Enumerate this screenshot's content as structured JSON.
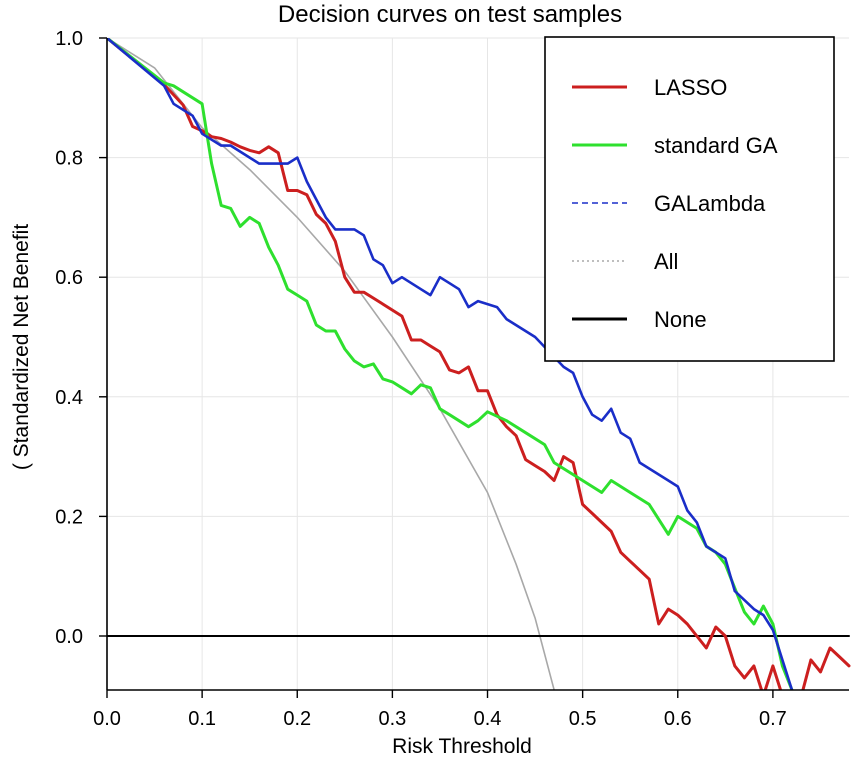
{
  "chart_data": {
    "type": "line",
    "title": "Decision curves on test samples",
    "xlabel": "Risk Threshold",
    "ylabel": "( Standardized Net Benefit",
    "xlim": [
      0,
      0.78
    ],
    "ylim": [
      -0.09,
      1.0
    ],
    "x_ticks": [
      0.0,
      0.1,
      0.2,
      0.3,
      0.4,
      0.5,
      0.6,
      0.7
    ],
    "x_tick_labels": [
      "0.0",
      "0.1",
      "0.2",
      "0.3",
      "0.4",
      "0.5",
      "0.6",
      "0.7"
    ],
    "y_ticks": [
      0.0,
      0.2,
      0.4,
      0.6,
      0.8,
      1.0
    ],
    "y_tick_labels": [
      "0.0",
      "0.2",
      "0.4",
      "0.6",
      "0.8",
      "1.0"
    ],
    "grid": true,
    "legend_position": "top-right",
    "series": [
      {
        "name": "LASSO",
        "color": "#cc1f1f",
        "dash": "solid",
        "points": [
          [
            0,
            1
          ],
          [
            0.06,
            0.922
          ],
          [
            0.08,
            0.888
          ],
          [
            0.09,
            0.852
          ],
          [
            0.1,
            0.845
          ],
          [
            0.11,
            0.835
          ],
          [
            0.12,
            0.832
          ],
          [
            0.13,
            0.826
          ],
          [
            0.14,
            0.818
          ],
          [
            0.15,
            0.812
          ],
          [
            0.16,
            0.808
          ],
          [
            0.17,
            0.818
          ],
          [
            0.18,
            0.808
          ],
          [
            0.19,
            0.745
          ],
          [
            0.2,
            0.745
          ],
          [
            0.21,
            0.738
          ],
          [
            0.22,
            0.705
          ],
          [
            0.23,
            0.69
          ],
          [
            0.24,
            0.66
          ],
          [
            0.25,
            0.6
          ],
          [
            0.26,
            0.575
          ],
          [
            0.27,
            0.575
          ],
          [
            0.28,
            0.565
          ],
          [
            0.29,
            0.555
          ],
          [
            0.3,
            0.545
          ],
          [
            0.31,
            0.535
          ],
          [
            0.32,
            0.495
          ],
          [
            0.33,
            0.495
          ],
          [
            0.34,
            0.485
          ],
          [
            0.35,
            0.475
          ],
          [
            0.36,
            0.445
          ],
          [
            0.37,
            0.44
          ],
          [
            0.38,
            0.45
          ],
          [
            0.39,
            0.41
          ],
          [
            0.4,
            0.41
          ],
          [
            0.41,
            0.37
          ],
          [
            0.42,
            0.35
          ],
          [
            0.43,
            0.335
          ],
          [
            0.44,
            0.295
          ],
          [
            0.45,
            0.285
          ],
          [
            0.46,
            0.275
          ],
          [
            0.47,
            0.26
          ],
          [
            0.48,
            0.3
          ],
          [
            0.49,
            0.29
          ],
          [
            0.5,
            0.22
          ],
          [
            0.51,
            0.205
          ],
          [
            0.52,
            0.19
          ],
          [
            0.53,
            0.175
          ],
          [
            0.54,
            0.14
          ],
          [
            0.55,
            0.125
          ],
          [
            0.56,
            0.11
          ],
          [
            0.57,
            0.095
          ],
          [
            0.58,
            0.02
          ],
          [
            0.59,
            0.045
          ],
          [
            0.6,
            0.035
          ],
          [
            0.61,
            0.02
          ],
          [
            0.62,
            0.0
          ],
          [
            0.63,
            -0.02
          ],
          [
            0.64,
            0.015
          ],
          [
            0.65,
            0.0
          ],
          [
            0.66,
            -0.05
          ],
          [
            0.67,
            -0.07
          ],
          [
            0.68,
            -0.05
          ],
          [
            0.69,
            -0.1
          ],
          [
            0.7,
            -0.05
          ],
          [
            0.71,
            -0.1
          ],
          [
            0.72,
            -0.1
          ],
          [
            0.73,
            -0.1
          ],
          [
            0.74,
            -0.04
          ],
          [
            0.75,
            -0.06
          ],
          [
            0.76,
            -0.02
          ],
          [
            0.77,
            -0.035
          ],
          [
            0.78,
            -0.05
          ]
        ]
      },
      {
        "name": "standard GA",
        "color": "#2ee02e",
        "dash": "solid",
        "points": [
          [
            0,
            1
          ],
          [
            0.06,
            0.925
          ],
          [
            0.07,
            0.92
          ],
          [
            0.08,
            0.91
          ],
          [
            0.09,
            0.9
          ],
          [
            0.1,
            0.89
          ],
          [
            0.11,
            0.79
          ],
          [
            0.12,
            0.72
          ],
          [
            0.13,
            0.715
          ],
          [
            0.14,
            0.685
          ],
          [
            0.15,
            0.7
          ],
          [
            0.16,
            0.69
          ],
          [
            0.17,
            0.65
          ],
          [
            0.18,
            0.62
          ],
          [
            0.19,
            0.58
          ],
          [
            0.2,
            0.57
          ],
          [
            0.21,
            0.56
          ],
          [
            0.22,
            0.52
          ],
          [
            0.23,
            0.51
          ],
          [
            0.24,
            0.51
          ],
          [
            0.25,
            0.48
          ],
          [
            0.26,
            0.46
          ],
          [
            0.27,
            0.45
          ],
          [
            0.28,
            0.455
          ],
          [
            0.29,
            0.43
          ],
          [
            0.3,
            0.425
          ],
          [
            0.31,
            0.415
          ],
          [
            0.32,
            0.405
          ],
          [
            0.33,
            0.42
          ],
          [
            0.34,
            0.415
          ],
          [
            0.35,
            0.38
          ],
          [
            0.36,
            0.37
          ],
          [
            0.37,
            0.36
          ],
          [
            0.38,
            0.35
          ],
          [
            0.39,
            0.36
          ],
          [
            0.4,
            0.375
          ],
          [
            0.42,
            0.36
          ],
          [
            0.44,
            0.34
          ],
          [
            0.46,
            0.32
          ],
          [
            0.47,
            0.29
          ],
          [
            0.48,
            0.28
          ],
          [
            0.5,
            0.26
          ],
          [
            0.52,
            0.24
          ],
          [
            0.53,
            0.26
          ],
          [
            0.55,
            0.24
          ],
          [
            0.57,
            0.22
          ],
          [
            0.59,
            0.17
          ],
          [
            0.6,
            0.2
          ],
          [
            0.61,
            0.19
          ],
          [
            0.62,
            0.18
          ],
          [
            0.63,
            0.15
          ],
          [
            0.64,
            0.14
          ],
          [
            0.65,
            0.12
          ],
          [
            0.66,
            0.08
          ],
          [
            0.67,
            0.04
          ],
          [
            0.68,
            0.02
          ],
          [
            0.69,
            0.05
          ],
          [
            0.7,
            0.02
          ],
          [
            0.71,
            -0.05
          ],
          [
            0.72,
            -0.09
          ]
        ]
      },
      {
        "name": "GALambda",
        "color": "#1a2ec8",
        "dash": "dashed",
        "points": [
          [
            0,
            1
          ],
          [
            0.06,
            0.92
          ],
          [
            0.07,
            0.89
          ],
          [
            0.08,
            0.88
          ],
          [
            0.09,
            0.87
          ],
          [
            0.1,
            0.84
          ],
          [
            0.11,
            0.83
          ],
          [
            0.12,
            0.82
          ],
          [
            0.13,
            0.82
          ],
          [
            0.14,
            0.81
          ],
          [
            0.15,
            0.8
          ],
          [
            0.16,
            0.79
          ],
          [
            0.17,
            0.79
          ],
          [
            0.18,
            0.79
          ],
          [
            0.19,
            0.79
          ],
          [
            0.2,
            0.8
          ],
          [
            0.21,
            0.76
          ],
          [
            0.22,
            0.73
          ],
          [
            0.23,
            0.7
          ],
          [
            0.24,
            0.68
          ],
          [
            0.25,
            0.68
          ],
          [
            0.26,
            0.68
          ],
          [
            0.27,
            0.67
          ],
          [
            0.28,
            0.63
          ],
          [
            0.29,
            0.62
          ],
          [
            0.3,
            0.59
          ],
          [
            0.31,
            0.6
          ],
          [
            0.32,
            0.59
          ],
          [
            0.33,
            0.58
          ],
          [
            0.34,
            0.57
          ],
          [
            0.35,
            0.6
          ],
          [
            0.36,
            0.59
          ],
          [
            0.37,
            0.58
          ],
          [
            0.38,
            0.55
          ],
          [
            0.39,
            0.56
          ],
          [
            0.4,
            0.555
          ],
          [
            0.41,
            0.55
          ],
          [
            0.42,
            0.53
          ],
          [
            0.45,
            0.5
          ],
          [
            0.48,
            0.45
          ],
          [
            0.49,
            0.44
          ],
          [
            0.5,
            0.4
          ],
          [
            0.51,
            0.37
          ],
          [
            0.52,
            0.36
          ],
          [
            0.53,
            0.38
          ],
          [
            0.54,
            0.34
          ],
          [
            0.55,
            0.33
          ],
          [
            0.56,
            0.29
          ],
          [
            0.58,
            0.27
          ],
          [
            0.59,
            0.26
          ],
          [
            0.6,
            0.25
          ],
          [
            0.61,
            0.21
          ],
          [
            0.62,
            0.19
          ],
          [
            0.63,
            0.15
          ],
          [
            0.64,
            0.14
          ],
          [
            0.65,
            0.13
          ],
          [
            0.66,
            0.075
          ],
          [
            0.67,
            0.06
          ],
          [
            0.68,
            0.045
          ],
          [
            0.69,
            0.035
          ],
          [
            0.7,
            0.01
          ],
          [
            0.71,
            -0.04
          ],
          [
            0.72,
            -0.09
          ]
        ]
      },
      {
        "name": "All",
        "color": "#a8a8a8",
        "dash": "dotted",
        "points": [
          [
            0,
            1
          ],
          [
            0.05,
            0.95
          ],
          [
            0.1,
            0.85
          ],
          [
            0.15,
            0.78
          ],
          [
            0.2,
            0.7
          ],
          [
            0.25,
            0.61
          ],
          [
            0.3,
            0.5
          ],
          [
            0.35,
            0.38
          ],
          [
            0.4,
            0.24
          ],
          [
            0.43,
            0.12
          ],
          [
            0.45,
            0.03
          ],
          [
            0.47,
            -0.09
          ]
        ]
      },
      {
        "name": "None",
        "color": "#000000",
        "dash": "dotted-dense",
        "points": [
          [
            0,
            0
          ],
          [
            0.78,
            0
          ]
        ]
      }
    ]
  }
}
